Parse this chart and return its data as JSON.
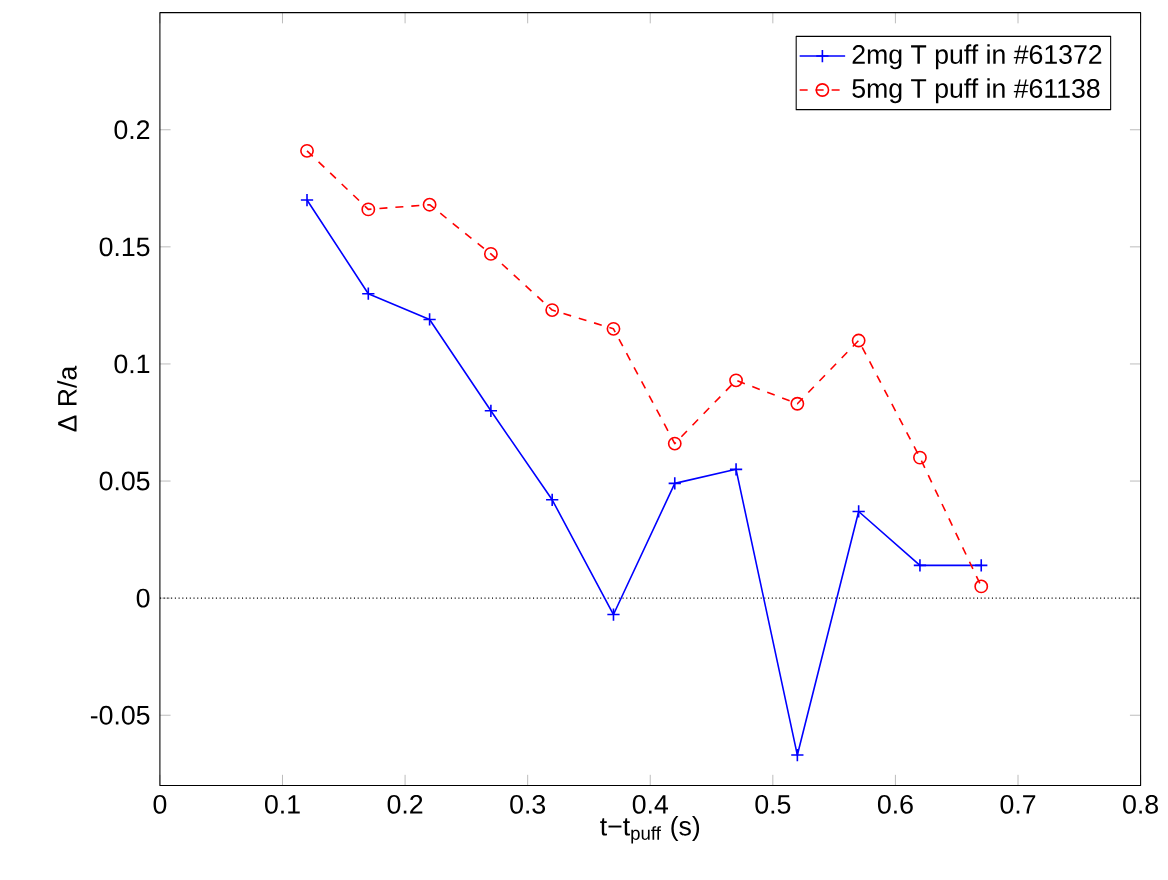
{
  "chart_data": {
    "type": "line",
    "xlabel": "t−t$_{puff}$ (s)",
    "ylabel": "Δ R/a",
    "x": [
      0.12,
      0.17,
      0.22,
      0.27,
      0.32,
      0.37,
      0.42,
      0.47,
      0.52,
      0.57,
      0.62,
      0.67
    ],
    "series": [
      {
        "name": "2mg T puff in #61372",
        "color": "#0000ff",
        "marker": "cross",
        "line_style": "solid",
        "values": [
          0.17,
          0.13,
          0.119,
          0.08,
          0.042,
          -0.007,
          0.049,
          0.055,
          -0.067,
          0.037,
          0.014,
          0.014
        ]
      },
      {
        "name": "5mg T puff in #61138",
        "color": "#ff0000",
        "marker": "circle",
        "line_style": "dashed",
        "values": [
          0.191,
          0.166,
          0.168,
          0.147,
          0.123,
          0.115,
          0.066,
          0.093,
          0.083,
          0.11,
          0.06,
          0.005
        ]
      }
    ],
    "xlim": [
      0,
      0.8
    ],
    "ylim": [
      -0.08,
      0.25
    ],
    "xticks": [
      0,
      0.1,
      0.2,
      0.3,
      0.4,
      0.5,
      0.6,
      0.7,
      0.8
    ],
    "yticks": [
      -0.05,
      0,
      0.05,
      0.1,
      0.15,
      0.2
    ],
    "ref_lines": [
      {
        "axis": "y",
        "value": 0,
        "color": "#000000",
        "line_style": "dotted"
      }
    ],
    "legend": "top right",
    "grid": false
  }
}
